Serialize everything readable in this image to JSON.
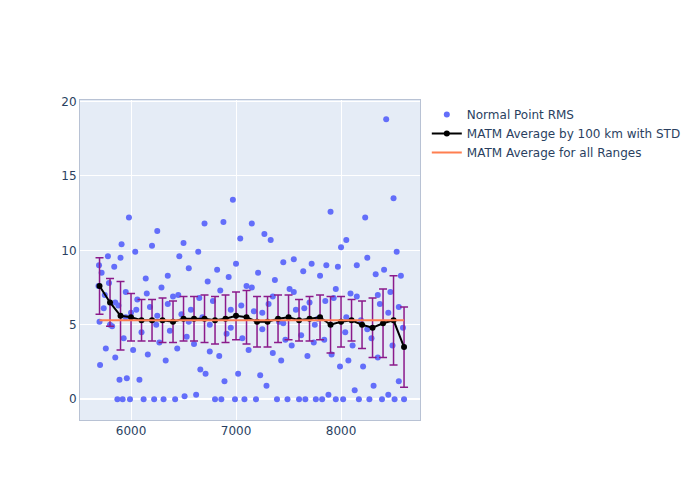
{
  "chart_data": {
    "type": "scatter",
    "xlim": [
      5514,
      8752
    ],
    "xticks": [
      6000,
      7000,
      8000
    ],
    "ylim": [
      -1.4,
      20.1
    ],
    "yticks": [
      0,
      5,
      10,
      15,
      20
    ],
    "grid": true,
    "legend": "right",
    "series": [
      {
        "name": "Normal Point RMS",
        "type": "scatter",
        "marker": "circle",
        "color": "#636efa",
        "x": [
          5690,
          5695,
          5700,
          5705,
          5720,
          5740,
          5760,
          5780,
          5790,
          5800,
          5820,
          5840,
          5850,
          5870,
          5880,
          5890,
          5900,
          5910,
          5920,
          5930,
          5950,
          5960,
          5980,
          5990,
          6000,
          6020,
          6040,
          6060,
          6080,
          6100,
          6120,
          6140,
          6160,
          6180,
          6200,
          6220,
          6240,
          6250,
          6270,
          6290,
          6310,
          6330,
          6350,
          6370,
          6400,
          6420,
          6440,
          6460,
          6480,
          6500,
          6510,
          6530,
          6550,
          6570,
          6600,
          6620,
          6640,
          6660,
          6680,
          6700,
          6710,
          6730,
          6750,
          6780,
          6800,
          6820,
          6840,
          6860,
          6880,
          6890,
          6910,
          6930,
          6950,
          6970,
          6990,
          7000,
          7020,
          7040,
          7060,
          7080,
          7100,
          7120,
          7150,
          7170,
          7190,
          7210,
          7230,
          7250,
          7270,
          7290,
          7310,
          7330,
          7350,
          7370,
          7390,
          7410,
          7430,
          7450,
          7470,
          7490,
          7510,
          7530,
          7550,
          7570,
          7600,
          7620,
          7640,
          7660,
          7680,
          7700,
          7720,
          7740,
          7760,
          7780,
          7800,
          7820,
          7840,
          7860,
          7880,
          7900,
          7910,
          7930,
          7950,
          7970,
          7990,
          8000,
          8020,
          8040,
          8050,
          8070,
          8090,
          8110,
          8130,
          8150,
          8170,
          8190,
          8210,
          8230,
          8250,
          8270,
          8290,
          8310,
          8330,
          8350,
          8370,
          8390,
          8410,
          8430,
          8450,
          8470,
          8490,
          8500,
          8510,
          8530,
          8550,
          8570,
          8590,
          8600,
          5750,
          5850,
          5950,
          6050,
          6150,
          6250,
          6350,
          6450,
          6550,
          6650,
          6750,
          6850,
          6950,
          7050,
          7150,
          7250,
          7350,
          7450,
          7550,
          7650,
          7750,
          7850,
          7950,
          8050,
          8150,
          8250,
          8350,
          8450,
          8550
        ],
        "values": [
          7.6,
          9.0,
          5.2,
          2.3,
          8.5,
          6.1,
          3.4,
          9.6,
          7.8,
          5.0,
          4.9,
          8.9,
          2.8,
          0,
          6.3,
          1.3,
          9.5,
          10.4,
          0,
          4.1,
          7.2,
          1.4,
          12.2,
          0,
          5.8,
          3.3,
          9.9,
          6.7,
          1.3,
          4.5,
          0,
          8.1,
          3.0,
          6.2,
          10.3,
          0,
          5.0,
          11.3,
          3.8,
          7.5,
          0,
          2.6,
          8.3,
          4.6,
          6.9,
          0,
          3.4,
          9.6,
          5.7,
          10.5,
          0.2,
          4.2,
          8.8,
          6.0,
          3.7,
          0.3,
          9.9,
          2.0,
          5.5,
          11.8,
          1.7,
          7.9,
          3.2,
          6.6,
          0,
          8.7,
          2.9,
          0,
          11.9,
          1.2,
          4.4,
          8.2,
          6.0,
          13.4,
          0,
          9.1,
          1.7,
          10.8,
          4.1,
          0,
          7.6,
          3.3,
          11.8,
          5.9,
          0,
          8.5,
          1.6,
          4.7,
          11.1,
          0.9,
          6.4,
          10.7,
          3.1,
          8.0,
          0,
          5.2,
          2.6,
          9.2,
          4.0,
          0,
          7.4,
          3.6,
          9.4,
          6.0,
          0,
          4.3,
          8.6,
          0,
          2.9,
          6.5,
          9.1,
          3.8,
          0,
          5.4,
          8.3,
          0,
          4.0,
          9.0,
          0.3,
          12.6,
          3.0,
          6.8,
          0,
          8.9,
          2.2,
          10.2,
          0,
          4.5,
          10.7,
          2.6,
          7.1,
          3.6,
          0.6,
          9.0,
          0,
          5.3,
          2.2,
          12.2,
          9.5,
          0,
          4.1,
          0.9,
          8.4,
          2.8,
          6.4,
          0,
          8.7,
          18.8,
          0.3,
          7.2,
          3.6,
          13.5,
          0,
          9.9,
          1.2,
          8.3,
          4.8,
          0,
          7.0,
          6.5,
          5.5,
          6.0,
          7.1,
          5.6,
          6.4,
          7.0,
          5.2,
          6.8,
          5.0,
          7.3,
          4.8,
          6.3,
          7.5,
          5.8,
          6.9,
          5.1,
          7.2,
          6.1,
          5.0,
          6.6,
          7.4,
          5.5,
          6.9,
          4.7,
          7.0,
          5.8,
          6.2
        ]
      },
      {
        "name": "MATM Average by 100 km with STD",
        "type": "line",
        "marker": "circle",
        "color": "#000000",
        "x": [
          5700,
          5800,
          5900,
          6000,
          6100,
          6200,
          6300,
          6400,
          6500,
          6600,
          6700,
          6800,
          6900,
          7000,
          7100,
          7200,
          7300,
          7400,
          7500,
          7600,
          7700,
          7800,
          7900,
          8000,
          8100,
          8200,
          8300,
          8400,
          8500,
          8600
        ],
        "values": [
          7.6,
          6.5,
          5.6,
          5.5,
          5.3,
          5.3,
          5.3,
          5.2,
          5.4,
          5.4,
          5.4,
          5.3,
          5.4,
          5.6,
          5.5,
          5.2,
          5.2,
          5.4,
          5.5,
          5.3,
          5.4,
          5.5,
          5.0,
          5.2,
          5.3,
          5.0,
          4.8,
          5.1,
          5.3,
          3.5
        ],
        "std": [
          1.9,
          1.6,
          2.3,
          1.6,
          1.4,
          1.4,
          1.5,
          1.4,
          1.5,
          1.5,
          1.6,
          1.6,
          1.6,
          1.6,
          1.8,
          1.7,
          1.7,
          1.6,
          1.5,
          1.4,
          1.5,
          1.5,
          1.9,
          1.7,
          1.4,
          1.6,
          2.0,
          2.3,
          3.0,
          2.7
        ]
      },
      {
        "name": "MATM Average for all Ranges",
        "type": "line",
        "line_style": "solid",
        "color": "#ff7f50",
        "x": [
          5700,
          8600
        ],
        "values": [
          5.3,
          5.3
        ]
      }
    ]
  }
}
